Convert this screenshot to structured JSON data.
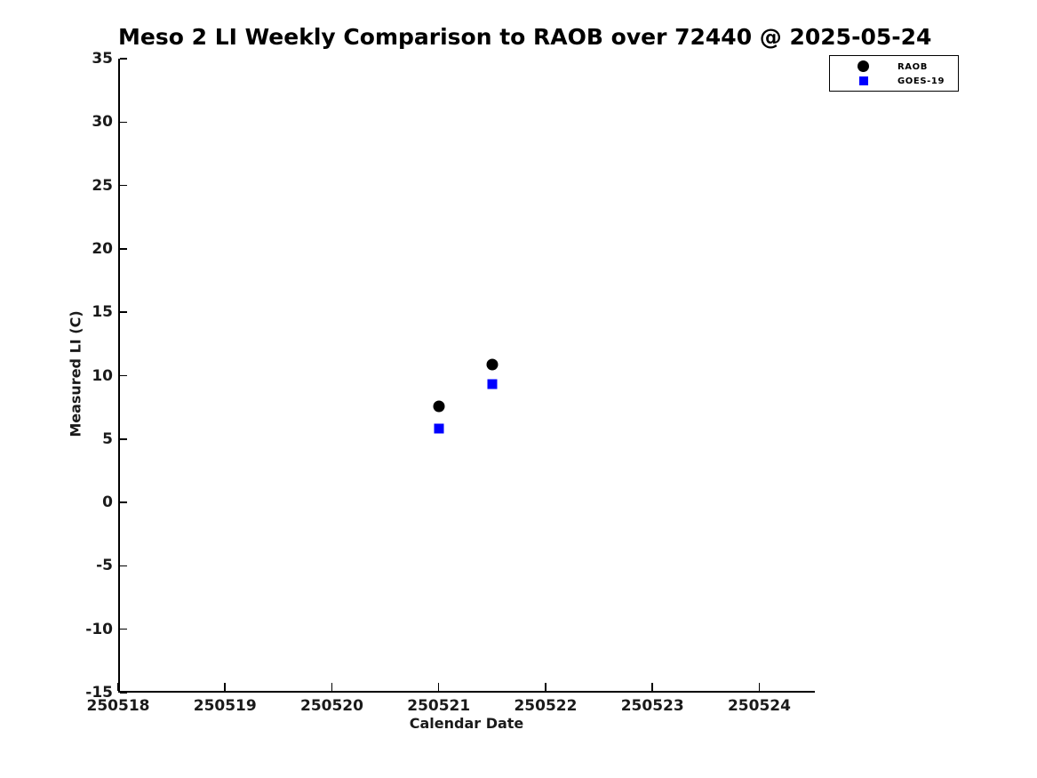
{
  "chart_data": {
    "type": "scatter",
    "title": "Meso 2 LI Weekly Comparison to RAOB over 72440 @ 2025-05-24",
    "xlabel": "Calendar Date",
    "ylabel": "Measured LI (C)",
    "station": "72440",
    "date": "2025-05-24",
    "xlim": [
      250518,
      250524.52
    ],
    "ylim": [
      -15,
      35
    ],
    "x_ticks": [
      250518,
      250519,
      250520,
      250521,
      250522,
      250523,
      250524
    ],
    "y_ticks": [
      35,
      30,
      25,
      20,
      15,
      10,
      5,
      0,
      -5,
      -10,
      -15
    ],
    "grid": false,
    "legend_position": "top-right",
    "series": [
      {
        "name": "RAOB",
        "marker": "circle",
        "color": "#000000",
        "points": [
          {
            "x": 250521.0,
            "y": 7.6
          },
          {
            "x": 250521.5,
            "y": 10.9
          }
        ]
      },
      {
        "name": "GOES-19",
        "marker": "square",
        "color": "#0000ff",
        "points": [
          {
            "x": 250521.0,
            "y": 5.8
          },
          {
            "x": 250521.5,
            "y": 9.3
          }
        ]
      }
    ]
  }
}
